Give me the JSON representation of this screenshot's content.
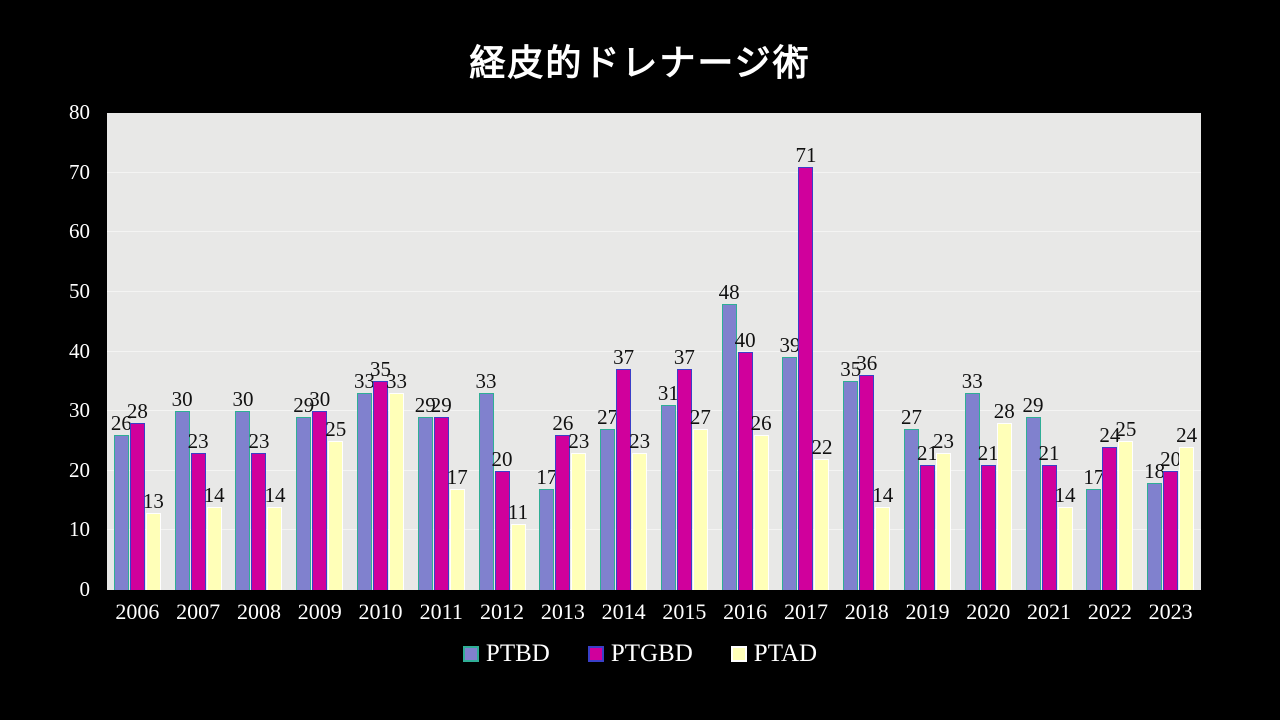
{
  "chart_data": {
    "type": "bar",
    "title": "経皮的ドレナージ術",
    "categories": [
      "2006",
      "2007",
      "2008",
      "2009",
      "2010",
      "2011",
      "2012",
      "2013",
      "2014",
      "2015",
      "2016",
      "2017",
      "2018",
      "2019",
      "2020",
      "2021",
      "2022",
      "2023"
    ],
    "series": [
      {
        "name": "PTBD",
        "fill": "#8081ce",
        "border": "#2fae96",
        "values": [
          26,
          30,
          30,
          29,
          33,
          29,
          33,
          17,
          27,
          31,
          48,
          39,
          35,
          27,
          33,
          29,
          17,
          18
        ]
      },
      {
        "name": "PTGBD",
        "fill": "#d0009c",
        "border": "#3a3fc8",
        "values": [
          28,
          23,
          23,
          30,
          35,
          29,
          20,
          26,
          37,
          37,
          40,
          71,
          36,
          21,
          21,
          21,
          24,
          20
        ]
      },
      {
        "name": "PTAD",
        "fill": "#ffffb8",
        "border": "#ffffff",
        "values": [
          13,
          14,
          14,
          25,
          33,
          17,
          11,
          23,
          23,
          27,
          26,
          22,
          14,
          23,
          28,
          14,
          25,
          24
        ]
      }
    ],
    "ylim": [
      0,
      80
    ],
    "yticks": [
      0,
      10,
      20,
      30,
      40,
      50,
      60,
      70,
      80
    ],
    "grid": true,
    "data_labels": true,
    "legend_position": "bottom",
    "colors": {
      "canvas_background": "#000000",
      "plot_background": "#e8e8e7",
      "gridline": "#f4f4f3",
      "axis_text": "#ffffff",
      "data_label_text": "#111111",
      "title_text": "#ffffff"
    }
  }
}
